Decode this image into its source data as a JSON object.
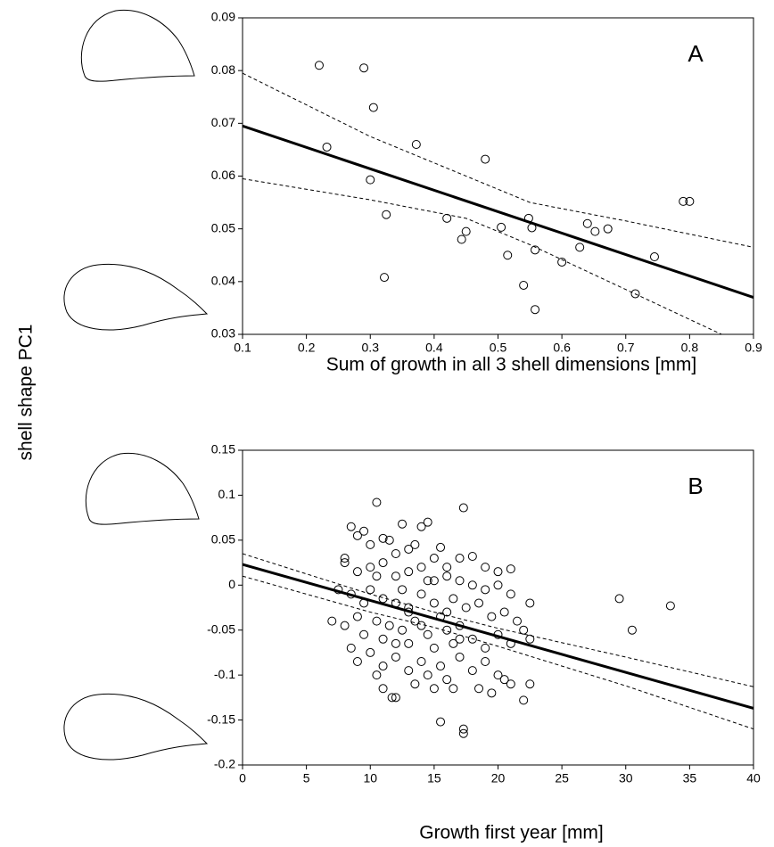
{
  "chart_data": [
    {
      "type": "scatter",
      "panel": "A",
      "xlabel": "Sum of growth in all 3 shell dimensions [mm]",
      "ylabel": "shell shape PC1",
      "xlim": [
        0.1,
        0.9
      ],
      "ylim": [
        0.03,
        0.09
      ],
      "xticks": [
        0.1,
        0.2,
        0.3,
        0.4,
        0.5,
        0.6,
        0.7,
        0.8,
        0.9
      ],
      "yticks": [
        0.03,
        0.04,
        0.05,
        0.06,
        0.07,
        0.08,
        0.09
      ],
      "color": "#000000",
      "points": [
        [
          0.22,
          0.081
        ],
        [
          0.29,
          0.0805
        ],
        [
          0.305,
          0.073
        ],
        [
          0.232,
          0.0655
        ],
        [
          0.372,
          0.066
        ],
        [
          0.3,
          0.0593
        ],
        [
          0.48,
          0.0632
        ],
        [
          0.325,
          0.0527
        ],
        [
          0.42,
          0.052
        ],
        [
          0.45,
          0.0495
        ],
        [
          0.443,
          0.048
        ],
        [
          0.505,
          0.0503
        ],
        [
          0.548,
          0.052
        ],
        [
          0.553,
          0.0502
        ],
        [
          0.515,
          0.045
        ],
        [
          0.558,
          0.046
        ],
        [
          0.322,
          0.0408
        ],
        [
          0.54,
          0.0393
        ],
        [
          0.558,
          0.0347
        ],
        [
          0.6,
          0.0437
        ],
        [
          0.628,
          0.0465
        ],
        [
          0.64,
          0.051
        ],
        [
          0.652,
          0.0495
        ],
        [
          0.672,
          0.05
        ],
        [
          0.745,
          0.0447
        ],
        [
          0.715,
          0.0377
        ],
        [
          0.79,
          0.0552
        ],
        [
          0.8,
          0.0552
        ]
      ],
      "fit": {
        "x": [
          0.1,
          0.9
        ],
        "y": [
          0.0695,
          0.037
        ]
      },
      "ci_upper": {
        "x": [
          0.1,
          0.3,
          0.5,
          0.55,
          0.7,
          0.9
        ],
        "y": [
          0.0795,
          0.0675,
          0.0575,
          0.055,
          0.0515,
          0.0465
        ]
      },
      "ci_lower": {
        "x": [
          0.1,
          0.3,
          0.45,
          0.55,
          0.7,
          0.85
        ],
        "y": [
          0.0595,
          0.0555,
          0.052,
          0.047,
          0.0385,
          0.03
        ]
      }
    },
    {
      "type": "scatter",
      "panel": "B",
      "xlabel": "Growth first year [mm]",
      "xlim": [
        0,
        40
      ],
      "ylim": [
        -0.2,
        0.15
      ],
      "xticks": [
        0,
        5,
        10,
        15,
        20,
        25,
        30,
        35,
        40
      ],
      "yticks": [
        -0.2,
        -0.15,
        -0.1,
        -0.05,
        0,
        0.05,
        0.1,
        0.15
      ],
      "color": "#000000",
      "points": [
        [
          10.5,
          0.092
        ],
        [
          17.3,
          0.086
        ],
        [
          29.5,
          -0.015
        ],
        [
          30.5,
          -0.05
        ],
        [
          33.5,
          -0.023
        ],
        [
          15.5,
          -0.152
        ],
        [
          17.3,
          -0.16
        ],
        [
          17.3,
          -0.165
        ],
        [
          11.7,
          -0.125
        ],
        [
          12,
          -0.125
        ],
        [
          22,
          -0.128
        ],
        [
          14.5,
          0.07
        ],
        [
          14,
          0.065
        ],
        [
          12.5,
          0.068
        ],
        [
          8.5,
          0.065
        ],
        [
          9,
          0.055
        ],
        [
          9.5,
          0.06
        ],
        [
          10,
          0.045
        ],
        [
          11,
          0.052
        ],
        [
          11.5,
          0.05
        ],
        [
          12,
          0.035
        ],
        [
          13,
          0.04
        ],
        [
          13.5,
          0.045
        ],
        [
          15,
          0.03
        ],
        [
          15.5,
          0.042
        ],
        [
          16,
          0.02
        ],
        [
          17,
          0.03
        ],
        [
          18,
          0.032
        ],
        [
          19,
          0.02
        ],
        [
          20,
          0.015
        ],
        [
          21,
          0.018
        ],
        [
          8,
          0.03
        ],
        [
          8,
          0.025
        ],
        [
          9,
          0.015
        ],
        [
          10,
          0.02
        ],
        [
          10.5,
          0.01
        ],
        [
          11,
          0.025
        ],
        [
          12,
          0.01
        ],
        [
          13,
          0.015
        ],
        [
          14,
          0.02
        ],
        [
          14.5,
          0.005
        ],
        [
          16,
          0.01
        ],
        [
          17,
          0.005
        ],
        [
          18,
          0.0
        ],
        [
          19,
          -0.005
        ],
        [
          20,
          0.0
        ],
        [
          21,
          -0.01
        ],
        [
          22.5,
          -0.02
        ],
        [
          7.5,
          -0.005
        ],
        [
          8.5,
          -0.01
        ],
        [
          9.5,
          -0.02
        ],
        [
          10,
          -0.005
        ],
        [
          11,
          -0.015
        ],
        [
          12,
          -0.02
        ],
        [
          12.5,
          -0.005
        ],
        [
          13,
          -0.03
        ],
        [
          14,
          -0.01
        ],
        [
          15,
          -0.02
        ],
        [
          15.5,
          -0.035
        ],
        [
          16.5,
          -0.015
        ],
        [
          17.5,
          -0.025
        ],
        [
          18.5,
          -0.02
        ],
        [
          19.5,
          -0.035
        ],
        [
          20.5,
          -0.03
        ],
        [
          21.5,
          -0.04
        ],
        [
          22,
          -0.05
        ],
        [
          7,
          -0.04
        ],
        [
          8,
          -0.045
        ],
        [
          9,
          -0.035
        ],
        [
          9.5,
          -0.055
        ],
        [
          10.5,
          -0.04
        ],
        [
          11,
          -0.06
        ],
        [
          11.5,
          -0.045
        ],
        [
          12.5,
          -0.05
        ],
        [
          13,
          -0.065
        ],
        [
          13.5,
          -0.04
        ],
        [
          14.5,
          -0.055
        ],
        [
          15,
          -0.07
        ],
        [
          16,
          -0.05
        ],
        [
          16.5,
          -0.065
        ],
        [
          17,
          -0.045
        ],
        [
          18,
          -0.06
        ],
        [
          19,
          -0.07
        ],
        [
          20,
          -0.055
        ],
        [
          21,
          -0.065
        ],
        [
          22.5,
          -0.06
        ],
        [
          8.5,
          -0.07
        ],
        [
          9,
          -0.085
        ],
        [
          10,
          -0.075
        ],
        [
          11,
          -0.09
        ],
        [
          12,
          -0.08
        ],
        [
          13,
          -0.095
        ],
        [
          14,
          -0.085
        ],
        [
          14.5,
          -0.1
        ],
        [
          15.5,
          -0.09
        ],
        [
          16,
          -0.105
        ],
        [
          17,
          -0.08
        ],
        [
          18,
          -0.095
        ],
        [
          19,
          -0.085
        ],
        [
          20,
          -0.1
        ],
        [
          21,
          -0.11
        ],
        [
          22.5,
          -0.11
        ],
        [
          10.5,
          -0.1
        ],
        [
          11,
          -0.115
        ],
        [
          13.5,
          -0.11
        ],
        [
          15,
          -0.115
        ],
        [
          16.5,
          -0.115
        ],
        [
          18.5,
          -0.115
        ],
        [
          19.5,
          -0.12
        ],
        [
          20.5,
          -0.105
        ],
        [
          12,
          -0.065
        ],
        [
          13,
          -0.025
        ],
        [
          14,
          -0.045
        ],
        [
          15,
          0.005
        ],
        [
          16,
          -0.03
        ],
        [
          17,
          -0.06
        ]
      ],
      "fit": {
        "x": [
          0,
          40
        ],
        "y": [
          0.023,
          -0.137
        ]
      },
      "ci_upper": {
        "x": [
          0,
          10,
          15,
          20,
          30,
          40
        ],
        "y": [
          0.035,
          -0.01,
          -0.03,
          -0.048,
          -0.08,
          -0.113
        ]
      },
      "ci_lower": {
        "x": [
          0,
          10,
          15,
          20,
          30,
          40
        ],
        "y": [
          0.01,
          -0.03,
          -0.047,
          -0.068,
          -0.112,
          -0.16
        ]
      }
    }
  ]
}
